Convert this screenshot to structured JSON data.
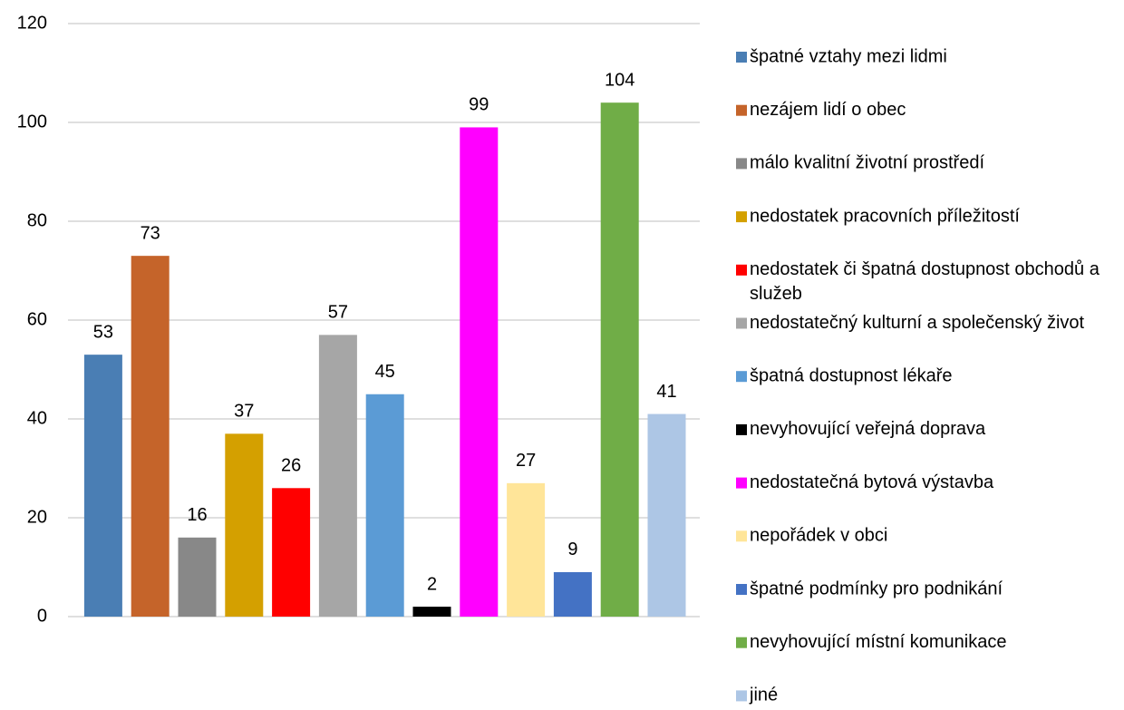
{
  "chart_data": {
    "type": "bar",
    "ylim": [
      0,
      120
    ],
    "yticks": [
      0,
      20,
      40,
      60,
      80,
      100,
      120
    ],
    "grid": true,
    "series": [
      {
        "name": "špatné vztahy mezi lidmi",
        "color": "#4a7eb4",
        "values": [
          53
        ]
      },
      {
        "name": "nezájem lidí o obec",
        "color": "#c5642a",
        "values": [
          73
        ]
      },
      {
        "name": "málo kvalitní životní prostředí",
        "color": "#888888",
        "values": [
          16
        ]
      },
      {
        "name": "nedostatek pracovních příležitostí",
        "color": "#d4a000",
        "values": [
          37
        ]
      },
      {
        "name": "nedostatek či špatná dostupnost obchodů a služeb",
        "color": "#ff0000",
        "values": [
          26
        ]
      },
      {
        "name": "nedostatečný kulturní a společenský život",
        "color": "#a6a6a6",
        "values": [
          57
        ]
      },
      {
        "name": "špatná dostupnost lékaře",
        "color": "#5b9bd5",
        "values": [
          45
        ]
      },
      {
        "name": "nevyhovující veřejná doprava",
        "color": "#000000",
        "values": [
          2
        ]
      },
      {
        "name": "nedostatečná bytová výstavba",
        "color": "#ff00ff",
        "values": [
          99
        ]
      },
      {
        "name": "nepořádek v obci",
        "color": "#ffe599",
        "values": [
          27
        ]
      },
      {
        "name": "špatné podmínky pro podnikání",
        "color": "#4472c4",
        "values": [
          9
        ]
      },
      {
        "name": "nevyhovující místní komunikace",
        "color": "#70ad47",
        "values": [
          104
        ]
      },
      {
        "name": "jiné",
        "color": "#adc6e5",
        "values": [
          41
        ]
      }
    ]
  }
}
